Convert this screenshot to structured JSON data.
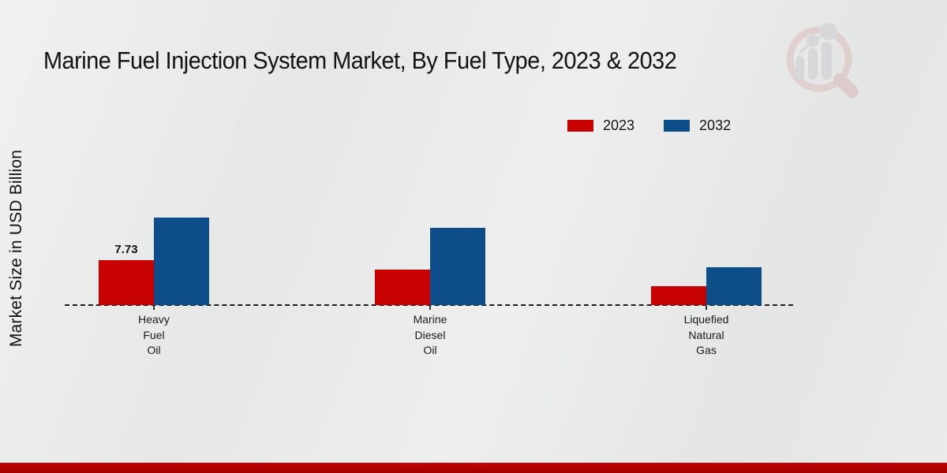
{
  "title": "Marine Fuel Injection System Market, By Fuel Type, 2023 & 2032",
  "y_axis_label": "Market Size in USD Billion",
  "icons": {
    "brand_watermark": "magnifier-bar-chart-icon"
  },
  "colors": {
    "series_2023": "#c80101",
    "series_2032": "#0d4d89",
    "footer_stripe": "#b20202",
    "watermark_ring": "#ddbebe",
    "watermark_bars": "#c9cbce"
  },
  "legend": {
    "position": "top-right",
    "items": [
      {
        "label": "2023",
        "color": "#c80101"
      },
      {
        "label": "2032",
        "color": "#0d4d89"
      }
    ]
  },
  "chart_data": {
    "type": "bar",
    "title": "Marine Fuel Injection System Market, By Fuel Type, 2023 & 2032",
    "xlabel": "",
    "ylabel": "Market Size in USD Billion",
    "categories": [
      "Heavy Fuel Oil",
      "Marine Diesel Oil",
      "Liquefied Natural Gas"
    ],
    "category_label_lines": [
      [
        "Heavy",
        "Fuel",
        "Oil"
      ],
      [
        "Marine",
        "Diesel",
        "Oil"
      ],
      [
        "Liquefied",
        "Natural",
        "Gas"
      ]
    ],
    "series": [
      {
        "name": "2023",
        "color": "#c80101",
        "values": [
          7.73,
          6.1,
          3.25
        ]
      },
      {
        "name": "2032",
        "color": "#0d4d89",
        "values": [
          15.05,
          13.3,
          6.5
        ]
      }
    ],
    "data_labels": [
      {
        "series": "2023",
        "category_index": 0,
        "text": "7.73"
      }
    ],
    "ylim": [
      0,
      16
    ],
    "y_axis_ticks_visible": false,
    "grid": false,
    "baseline_style": "dashed",
    "legend_position": "top-right"
  }
}
